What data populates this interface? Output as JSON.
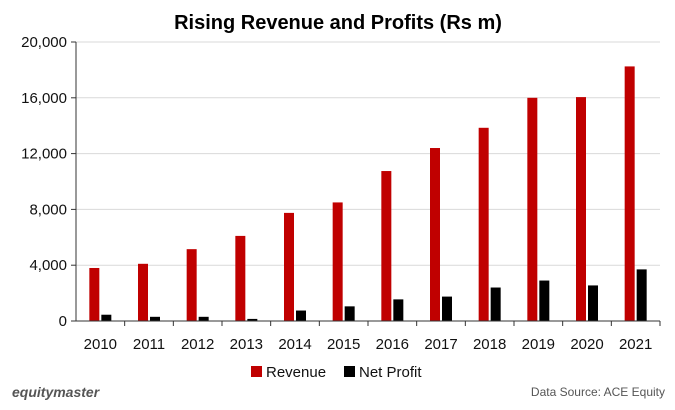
{
  "chart_data": {
    "type": "bar",
    "title": "Rising Revenue and Profits (Rs m)",
    "categories": [
      "2010",
      "2011",
      "2012",
      "2013",
      "2014",
      "2015",
      "2016",
      "2017",
      "2018",
      "2019",
      "2020",
      "2021"
    ],
    "series": [
      {
        "name": "Revenue",
        "color": "#c00000",
        "values": [
          3800,
          4100,
          5150,
          6100,
          7750,
          8500,
          10750,
          12400,
          13850,
          16000,
          16050,
          18250
        ]
      },
      {
        "name": "Net Profit",
        "color": "#000000",
        "values": [
          450,
          300,
          300,
          150,
          750,
          1050,
          1550,
          1750,
          2400,
          2900,
          2550,
          3700
        ]
      }
    ],
    "y_ticks": [
      "0",
      "4,000",
      "8,000",
      "12,000",
      "16,000",
      "20,000"
    ],
    "ylim": [
      0,
      20000
    ],
    "xlabel": "",
    "ylabel": "",
    "grid": true,
    "legend": "bottom-center"
  },
  "footer": {
    "brand": "equitymaster",
    "source": "Data Source: ACE Equity"
  }
}
